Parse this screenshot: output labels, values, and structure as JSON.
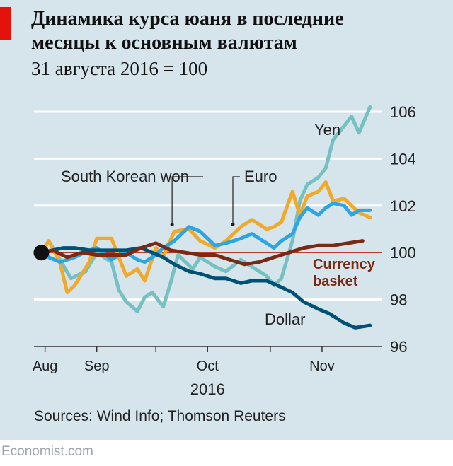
{
  "header": {
    "title_line1": "Динамика курса юаня в последние",
    "title_line2": "месяцы к основным валютам",
    "subtitle": "31 августа 2016 = 100"
  },
  "footer": {
    "source": "Sources: Wind Info; Thomson Reuters",
    "brand": "Economist.com"
  },
  "colors": {
    "panel": "#d6e4eb",
    "accent_red": "#e3120b",
    "yen": "#76c0c1",
    "euro": "#f0a92b",
    "south_korean_won": "#2ba6e0",
    "dollar": "#005274",
    "currency_basket": "#7a2a14",
    "baseline": "#c0392b"
  },
  "chart_data": {
    "type": "line",
    "x_axis_kind": "date",
    "xlim": [
      "2016-08-29",
      "2016-11-29"
    ],
    "ylim": [
      96,
      106
    ],
    "y_ticks": [
      96,
      98,
      100,
      102,
      104,
      106
    ],
    "y_tick_labels": [
      "96",
      "98",
      "100",
      "102",
      "104",
      "106"
    ],
    "x_ticks": [
      "2016-09-01",
      "2016-09-15",
      "2016-10-01",
      "2016-10-15",
      "2016-11-01",
      "2016-11-15"
    ],
    "x_tick_labels": [
      {
        "date": "2016-09-01",
        "label": "Aug"
      },
      {
        "date": "2016-09-15",
        "label": "Sep"
      },
      {
        "date": "2016-10-15",
        "label": "Oct"
      },
      {
        "date": "2016-11-15",
        "label": "Nov"
      }
    ],
    "year_label": "2016",
    "baseline": 100,
    "grid": "horizontal",
    "y_axis_side": "right",
    "origin_marker": {
      "x": "2016-08-31",
      "y": 100
    },
    "series": [
      {
        "name": "Yen",
        "color": "#76c0c1",
        "points": [
          [
            "2016-08-31",
            100.0
          ],
          [
            "2016-09-02",
            100.5
          ],
          [
            "2016-09-05",
            99.7
          ],
          [
            "2016-09-08",
            98.9
          ],
          [
            "2016-09-12",
            99.2
          ],
          [
            "2016-09-15",
            100.0
          ],
          [
            "2016-09-19",
            99.6
          ],
          [
            "2016-09-21",
            98.4
          ],
          [
            "2016-09-23",
            97.9
          ],
          [
            "2016-09-26",
            97.5
          ],
          [
            "2016-09-28",
            98.1
          ],
          [
            "2016-09-30",
            98.3
          ],
          [
            "2016-10-03",
            97.7
          ],
          [
            "2016-10-05",
            98.7
          ],
          [
            "2016-10-07",
            99.9
          ],
          [
            "2016-10-11",
            99.3
          ],
          [
            "2016-10-13",
            99.8
          ],
          [
            "2016-10-17",
            99.4
          ],
          [
            "2016-10-20",
            99.2
          ],
          [
            "2016-10-24",
            99.7
          ],
          [
            "2016-10-27",
            99.4
          ],
          [
            "2016-10-31",
            99.0
          ],
          [
            "2016-11-02",
            98.6
          ],
          [
            "2016-11-04",
            98.9
          ],
          [
            "2016-11-07",
            100.5
          ],
          [
            "2016-11-09",
            102.2
          ],
          [
            "2016-11-11",
            102.9
          ],
          [
            "2016-11-14",
            103.2
          ],
          [
            "2016-11-16",
            103.6
          ],
          [
            "2016-11-18",
            104.8
          ],
          [
            "2016-11-21",
            105.4
          ],
          [
            "2016-11-23",
            105.8
          ],
          [
            "2016-11-25",
            105.1
          ],
          [
            "2016-11-28",
            106.2
          ]
        ]
      },
      {
        "name": "Euro",
        "color": "#f0a92b",
        "points": [
          [
            "2016-08-31",
            100.0
          ],
          [
            "2016-09-02",
            100.5
          ],
          [
            "2016-09-05",
            99.6
          ],
          [
            "2016-09-07",
            98.3
          ],
          [
            "2016-09-09",
            98.6
          ],
          [
            "2016-09-13",
            99.6
          ],
          [
            "2016-09-15",
            100.6
          ],
          [
            "2016-09-19",
            100.6
          ],
          [
            "2016-09-21",
            99.8
          ],
          [
            "2016-09-23",
            99.0
          ],
          [
            "2016-09-26",
            99.3
          ],
          [
            "2016-09-28",
            98.8
          ],
          [
            "2016-10-01",
            100.2
          ],
          [
            "2016-10-03",
            99.8
          ],
          [
            "2016-10-06",
            100.9
          ],
          [
            "2016-10-10",
            101.0
          ],
          [
            "2016-10-13",
            100.5
          ],
          [
            "2016-10-17",
            100.2
          ],
          [
            "2016-10-20",
            100.5
          ],
          [
            "2016-10-24",
            101.1
          ],
          [
            "2016-10-27",
            101.4
          ],
          [
            "2016-10-31",
            101.0
          ],
          [
            "2016-11-02",
            101.1
          ],
          [
            "2016-11-04",
            101.3
          ],
          [
            "2016-11-07",
            102.6
          ],
          [
            "2016-11-09",
            101.6
          ],
          [
            "2016-11-11",
            102.4
          ],
          [
            "2016-11-14",
            102.6
          ],
          [
            "2016-11-16",
            103.0
          ],
          [
            "2016-11-18",
            102.2
          ],
          [
            "2016-11-21",
            102.3
          ],
          [
            "2016-11-23",
            102.0
          ],
          [
            "2016-11-25",
            101.7
          ],
          [
            "2016-11-28",
            101.5
          ]
        ]
      },
      {
        "name": "South Korean won",
        "color": "#2ba6e0",
        "points": [
          [
            "2016-08-31",
            100.0
          ],
          [
            "2016-09-02",
            99.8
          ],
          [
            "2016-09-05",
            99.6
          ],
          [
            "2016-09-07",
            99.7
          ],
          [
            "2016-09-09",
            99.8
          ],
          [
            "2016-09-13",
            100.1
          ],
          [
            "2016-09-15",
            100.2
          ],
          [
            "2016-09-19",
            99.7
          ],
          [
            "2016-09-21",
            99.9
          ],
          [
            "2016-09-23",
            100.0
          ],
          [
            "2016-09-26",
            99.7
          ],
          [
            "2016-09-28",
            99.6
          ],
          [
            "2016-10-01",
            99.9
          ],
          [
            "2016-10-03",
            100.2
          ],
          [
            "2016-10-06",
            100.5
          ],
          [
            "2016-10-10",
            101.1
          ],
          [
            "2016-10-13",
            100.9
          ],
          [
            "2016-10-17",
            100.3
          ],
          [
            "2016-10-20",
            100.4
          ],
          [
            "2016-10-24",
            100.6
          ],
          [
            "2016-10-27",
            100.8
          ],
          [
            "2016-10-31",
            100.4
          ],
          [
            "2016-11-02",
            100.2
          ],
          [
            "2016-11-04",
            100.5
          ],
          [
            "2016-11-07",
            100.8
          ],
          [
            "2016-11-09",
            101.5
          ],
          [
            "2016-11-11",
            101.9
          ],
          [
            "2016-11-14",
            101.6
          ],
          [
            "2016-11-16",
            101.9
          ],
          [
            "2016-11-18",
            102.1
          ],
          [
            "2016-11-21",
            102.0
          ],
          [
            "2016-11-23",
            101.6
          ],
          [
            "2016-11-25",
            101.8
          ],
          [
            "2016-11-28",
            101.8
          ]
        ]
      },
      {
        "name": "Dollar",
        "color": "#005274",
        "points": [
          [
            "2016-08-31",
            100.0
          ],
          [
            "2016-09-03",
            100.1
          ],
          [
            "2016-09-06",
            100.2
          ],
          [
            "2016-09-09",
            100.2
          ],
          [
            "2016-09-13",
            100.1
          ],
          [
            "2016-09-16",
            100.1
          ],
          [
            "2016-09-20",
            100.1
          ],
          [
            "2016-09-23",
            100.1
          ],
          [
            "2016-09-27",
            100.2
          ],
          [
            "2016-09-30",
            100.0
          ],
          [
            "2016-10-03",
            99.8
          ],
          [
            "2016-10-06",
            99.5
          ],
          [
            "2016-10-10",
            99.2
          ],
          [
            "2016-10-13",
            99.1
          ],
          [
            "2016-10-17",
            98.9
          ],
          [
            "2016-10-20",
            98.9
          ],
          [
            "2016-10-24",
            98.7
          ],
          [
            "2016-10-27",
            98.8
          ],
          [
            "2016-10-31",
            98.8
          ],
          [
            "2016-11-03",
            98.6
          ],
          [
            "2016-11-07",
            98.3
          ],
          [
            "2016-11-10",
            97.9
          ],
          [
            "2016-11-14",
            97.6
          ],
          [
            "2016-11-17",
            97.4
          ],
          [
            "2016-11-21",
            97.0
          ],
          [
            "2016-11-24",
            96.8
          ],
          [
            "2016-11-28",
            96.9
          ]
        ]
      },
      {
        "name": "Currency basket",
        "color": "#7a2a14",
        "points": [
          [
            "2016-08-31",
            100.0
          ],
          [
            "2016-09-03",
            100.1
          ],
          [
            "2016-09-07",
            99.8
          ],
          [
            "2016-09-11",
            100.0
          ],
          [
            "2016-09-15",
            99.9
          ],
          [
            "2016-09-19",
            99.9
          ],
          [
            "2016-09-23",
            99.9
          ],
          [
            "2016-09-27",
            100.2
          ],
          [
            "2016-10-01",
            100.4
          ],
          [
            "2016-10-05",
            100.1
          ],
          [
            "2016-10-09",
            100.0
          ],
          [
            "2016-10-13",
            99.9
          ],
          [
            "2016-10-17",
            99.9
          ],
          [
            "2016-10-21",
            99.7
          ],
          [
            "2016-10-25",
            99.5
          ],
          [
            "2016-10-29",
            99.6
          ],
          [
            "2016-11-02",
            99.8
          ],
          [
            "2016-11-06",
            100.0
          ],
          [
            "2016-11-10",
            100.2
          ],
          [
            "2016-11-14",
            100.3
          ],
          [
            "2016-11-18",
            100.3
          ],
          [
            "2016-11-22",
            100.4
          ],
          [
            "2016-11-26",
            100.5
          ]
        ]
      }
    ],
    "labels": [
      {
        "text": "Yen",
        "series": "Yen",
        "placement": "left of line end"
      },
      {
        "text": "Euro",
        "series": "Euro",
        "placement": "callout, above series"
      },
      {
        "text": "South Korean won",
        "series": "South Korean won",
        "placement": "callout, above series"
      },
      {
        "text": "Dollar",
        "series": "Dollar",
        "placement": "below line"
      },
      {
        "text": "Currency basket",
        "series": "Currency basket",
        "placement": "right, two lines"
      }
    ]
  }
}
